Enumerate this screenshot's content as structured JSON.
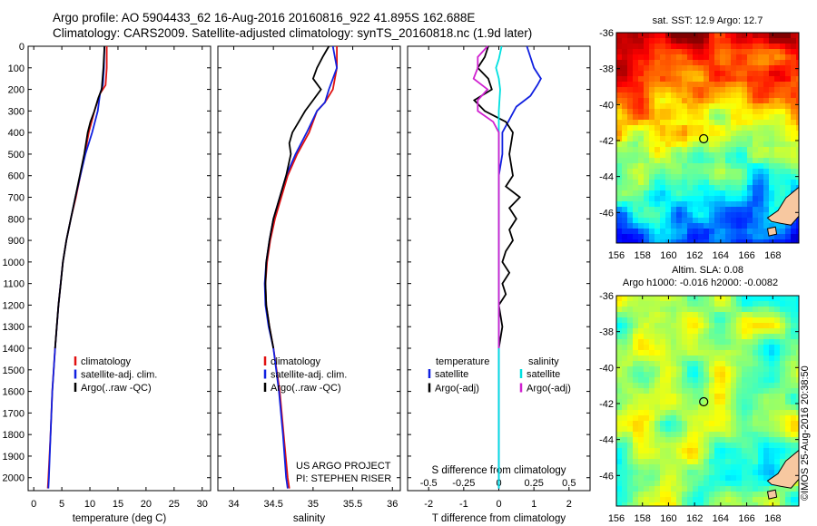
{
  "header": {
    "line1": "Argo profile: AO 5904433_62 16-Aug-2016 20160816_922 41.895S 162.688E",
    "line2": "Climatology: CARS2009. Satellite-adjusted climatology: synTS_20160818.nc (1.9d later)"
  },
  "footer_stamp": "©IMOS 25-Aug-2016 20:38:50",
  "project_credit": {
    "line1": "US ARGO PROJECT",
    "line2": "PI: STEPHEN RISER"
  },
  "colors": {
    "climatology": "#e01010",
    "satellite": "#1020e0",
    "argo": "#000000",
    "sat_salinity": "#00e0e0",
    "argo_salinity": "#d020d0"
  },
  "chart_data": [
    {
      "type": "line",
      "id": "temperature",
      "xlabel": "temperature (deg C)",
      "xlim": [
        -1,
        31.5
      ],
      "xticks": [
        0,
        5,
        10,
        15,
        20,
        25,
        30
      ],
      "ylim": [
        0,
        2060
      ],
      "yticks": [
        0,
        100,
        200,
        300,
        400,
        500,
        600,
        700,
        800,
        900,
        1000,
        1100,
        1200,
        1300,
        1400,
        1500,
        1600,
        1700,
        1800,
        1900,
        2000
      ],
      "legend": [
        "climatology",
        "satellite-adj. clim.",
        "Argo(..raw -QC)"
      ],
      "series": [
        {
          "name": "climatology",
          "color": "#e01010",
          "depth": [
            0,
            100,
            180,
            220,
            300,
            400,
            500,
            600,
            700,
            800,
            900,
            1000,
            1200,
            1400,
            1600,
            1800,
            2000,
            2050
          ],
          "values": [
            13.0,
            13.0,
            12.8,
            11.8,
            10.8,
            9.8,
            9.1,
            8.3,
            7.5,
            6.6,
            5.8,
            5.2,
            4.4,
            3.8,
            3.3,
            3.0,
            2.6,
            2.5
          ]
        },
        {
          "name": "satellite-adj. clim.",
          "color": "#1020e0",
          "depth": [
            0,
            100,
            180,
            220,
            300,
            400,
            500,
            600,
            700,
            800,
            900,
            1000,
            1200,
            1400,
            1600,
            1800,
            2000,
            2050
          ],
          "values": [
            12.6,
            12.5,
            12.3,
            11.8,
            11.4,
            10.4,
            9.2,
            8.3,
            7.4,
            6.6,
            5.8,
            5.2,
            4.4,
            3.8,
            3.3,
            3.0,
            2.7,
            2.6
          ]
        },
        {
          "name": "Argo(..raw -QC)",
          "color": "#000000",
          "depth": [
            0,
            50,
            100,
            200,
            240,
            300,
            350,
            400,
            450,
            500,
            600,
            700,
            800,
            900,
            1000,
            1100,
            1200,
            1300,
            1400
          ],
          "values": [
            12.6,
            12.5,
            12.4,
            12.1,
            11.5,
            10.8,
            10.1,
            9.6,
            9.3,
            9.0,
            8.2,
            7.4,
            6.6,
            5.8,
            5.2,
            4.8,
            4.4,
            4.1,
            3.8
          ]
        }
      ]
    },
    {
      "type": "line",
      "id": "salinity",
      "xlabel": "salinity",
      "xlim": [
        33.8,
        36.1
      ],
      "xticks": [
        34,
        34.5,
        35,
        35.5,
        36
      ],
      "ylim": [
        0,
        2060
      ],
      "legend": [
        "climatology",
        "satellite-adj. clim.",
        "Argo(..raw -QC)"
      ],
      "series": [
        {
          "name": "climatology",
          "color": "#e01010",
          "depth": [
            0,
            100,
            200,
            260,
            300,
            400,
            500,
            600,
            700,
            800,
            900,
            1000,
            1100,
            1200,
            1300,
            1400,
            1600,
            1800,
            2000,
            2050
          ],
          "values": [
            35.3,
            35.3,
            35.25,
            35.15,
            35.05,
            34.95,
            34.8,
            34.68,
            34.6,
            34.52,
            34.46,
            34.42,
            34.4,
            34.41,
            34.45,
            34.5,
            34.58,
            34.63,
            34.68,
            34.7
          ]
        },
        {
          "name": "satellite-adj. clim.",
          "color": "#1020e0",
          "depth": [
            0,
            100,
            200,
            260,
            300,
            400,
            500,
            600,
            700,
            800,
            900,
            1000,
            1100,
            1200,
            1300,
            1400,
            1600,
            1800,
            2000,
            2050
          ],
          "values": [
            35.25,
            35.3,
            35.2,
            35.15,
            35.05,
            34.92,
            34.78,
            34.66,
            34.58,
            34.5,
            34.45,
            34.41,
            34.39,
            34.4,
            34.44,
            34.5,
            34.57,
            34.62,
            34.66,
            34.68
          ]
        },
        {
          "name": "Argo(..raw -QC)",
          "color": "#000000",
          "depth": [
            0,
            50,
            100,
            150,
            200,
            250,
            300,
            350,
            400,
            450,
            500,
            600,
            700,
            800,
            900,
            1000,
            1100,
            1200,
            1300,
            1400
          ],
          "values": [
            35.2,
            35.12,
            35.05,
            35.0,
            35.1,
            35.0,
            34.9,
            34.82,
            34.74,
            34.7,
            34.72,
            34.66,
            34.58,
            34.5,
            34.45,
            34.41,
            34.4,
            34.41,
            34.45,
            34.5
          ]
        }
      ]
    },
    {
      "type": "line",
      "id": "difference",
      "xlabel": "T difference from climatology",
      "xlabel_top": "S difference from climatology",
      "xlim": [
        -2.6,
        2.6
      ],
      "xticks": [
        -2,
        -1,
        0,
        1,
        2
      ],
      "xticks_top": [
        -0.5,
        -0.25,
        0,
        0.25,
        0.5
      ],
      "ylim": [
        0,
        2060
      ],
      "legend_left": {
        "title": "temperature",
        "items": [
          "satellite",
          "Argo(-adj)"
        ]
      },
      "legend_right": {
        "title": "salinity",
        "items": [
          "satellite",
          "Argo(-adj)"
        ]
      },
      "series": [
        {
          "name": "T satellite",
          "color": "#1020e0",
          "depth": [
            0,
            50,
            100,
            150,
            180,
            230,
            280,
            340,
            400,
            500,
            600,
            700,
            800,
            900,
            1000,
            1200,
            1400,
            1600,
            1800,
            2000,
            2050
          ],
          "values": [
            0.8,
            0.9,
            1.0,
            1.2,
            1.1,
            0.9,
            0.5,
            0.3,
            0.1,
            0.1,
            0.0,
            0.0,
            0.0,
            0.0,
            0.0,
            0.0,
            0.0,
            0.0,
            0.0,
            0.0,
            0.0
          ]
        },
        {
          "name": "T Argo(-adj)",
          "color": "#000000",
          "depth": [
            0,
            50,
            100,
            150,
            200,
            250,
            300,
            350,
            400,
            500,
            600,
            650,
            700,
            750,
            800,
            850,
            900,
            950,
            1000,
            1050,
            1100,
            1150,
            1200,
            1300,
            1400
          ],
          "values": [
            -0.3,
            -0.4,
            -0.6,
            -0.3,
            -0.2,
            -0.7,
            -0.4,
            0.2,
            0.4,
            0.3,
            0.4,
            0.2,
            0.6,
            0.3,
            0.5,
            0.3,
            0.4,
            0.2,
            0.1,
            0.3,
            0.1,
            0.2,
            0.0,
            0.1,
            0.0
          ]
        },
        {
          "name": "S satellite",
          "color": "#00e0e0",
          "depth": [
            0,
            60,
            100,
            150,
            200,
            300,
            400,
            600,
            800,
            1000,
            1200,
            1400,
            1600,
            1800,
            2000,
            2050
          ],
          "values": [
            0.02,
            0.0,
            -0.02,
            0.0,
            0.01,
            0.0,
            0.0,
            0.0,
            0.0,
            0.0,
            0.0,
            0.0,
            0.0,
            0.0,
            0.0,
            0.0
          ]
        },
        {
          "name": "S Argo(-adj)",
          "color": "#d020d0",
          "depth": [
            0,
            50,
            100,
            150,
            200,
            250,
            300,
            350,
            400,
            500,
            600,
            700,
            800,
            900,
            1000,
            1100,
            1200,
            1300,
            1400
          ],
          "values": [
            -0.08,
            -0.15,
            -0.15,
            -0.18,
            -0.08,
            -0.15,
            -0.15,
            -0.04,
            0.0,
            0.0,
            0.0,
            0.0,
            0.0,
            0.0,
            0.0,
            0.0,
            0.0,
            0.0,
            0.0
          ]
        }
      ]
    },
    {
      "type": "heatmap",
      "id": "sst_map",
      "title": "sat. SST: 12.9 Argo: 12.7",
      "xlim": [
        156,
        170
      ],
      "ylim": [
        -47.7,
        -36
      ],
      "xticks": [
        156,
        158,
        160,
        162,
        164,
        166,
        168
      ],
      "yticks": [
        -36,
        -38,
        -40,
        -42,
        -44,
        -46
      ],
      "marker": {
        "lon": 162.7,
        "lat": -41.9
      }
    },
    {
      "type": "heatmap",
      "id": "sla_map",
      "title": "Altim. SLA: 0.08",
      "subtitle": "Argo h1000: -0.016 h2000: -0.0082",
      "xlim": [
        156,
        170
      ],
      "ylim": [
        -47.7,
        -36
      ],
      "xticks": [
        156,
        158,
        160,
        162,
        164,
        166,
        168
      ],
      "yticks": [
        -36,
        -38,
        -40,
        -42,
        -44,
        -46
      ],
      "marker": {
        "lon": 162.7,
        "lat": -41.9
      }
    }
  ]
}
